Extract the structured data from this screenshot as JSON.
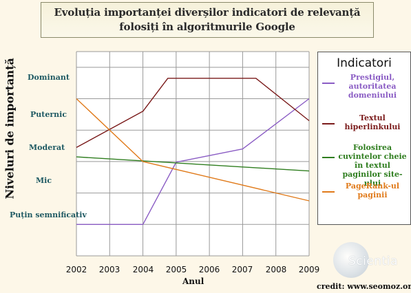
{
  "title": {
    "line1": "Evoluția importanței diverșilor indicatori de relevanță",
    "line2": "folosiți în algoritmurile Google"
  },
  "credit": "credit: www.seomoz.org",
  "logo": {
    "text": "Scientia"
  },
  "colors": {
    "background": "#fdf7e8",
    "grid": "#999999",
    "level_label": "#1f5a63"
  },
  "legend": {
    "title": "Indicatori",
    "placement": "right"
  },
  "chart_data": {
    "type": "line",
    "xlabel": "Anul",
    "ylabel": "Niveluri de importanță",
    "x": [
      2002,
      2003,
      2004,
      2005,
      2006,
      2007,
      2008,
      2009
    ],
    "xlim": [
      2002,
      2009
    ],
    "ylim": [
      -1,
      5.5
    ],
    "y_levels": [
      "Puțin semnificativ",
      "Mic",
      "Moderat",
      "Puternic",
      "Dominant"
    ],
    "grid": true,
    "series": [
      {
        "name": "Prestigiul, autoritatea domeniului",
        "color": "#8a5cc4",
        "points": [
          [
            2002,
            0
          ],
          [
            2004,
            0
          ],
          [
            2005,
            1.98
          ],
          [
            2007,
            2.4
          ],
          [
            2009,
            4
          ]
        ]
      },
      {
        "name": "Textul hiperlinkului",
        "color": "#7a1a1a",
        "points": [
          [
            2002,
            2.45
          ],
          [
            2004,
            3.6
          ],
          [
            2004.75,
            4.65
          ],
          [
            2007.4,
            4.65
          ],
          [
            2009,
            3.3
          ]
        ]
      },
      {
        "name": "Folosirea cuvintelor cheie în textul paginilor site-ului",
        "color": "#2e7d1e",
        "points": [
          [
            2002,
            2.15
          ],
          [
            2009,
            1.7
          ]
        ]
      },
      {
        "name": "PageRank-ul paginii",
        "color": "#e07a1a",
        "points": [
          [
            2002,
            4
          ],
          [
            2004,
            2
          ],
          [
            2009,
            0.75
          ]
        ]
      }
    ]
  }
}
